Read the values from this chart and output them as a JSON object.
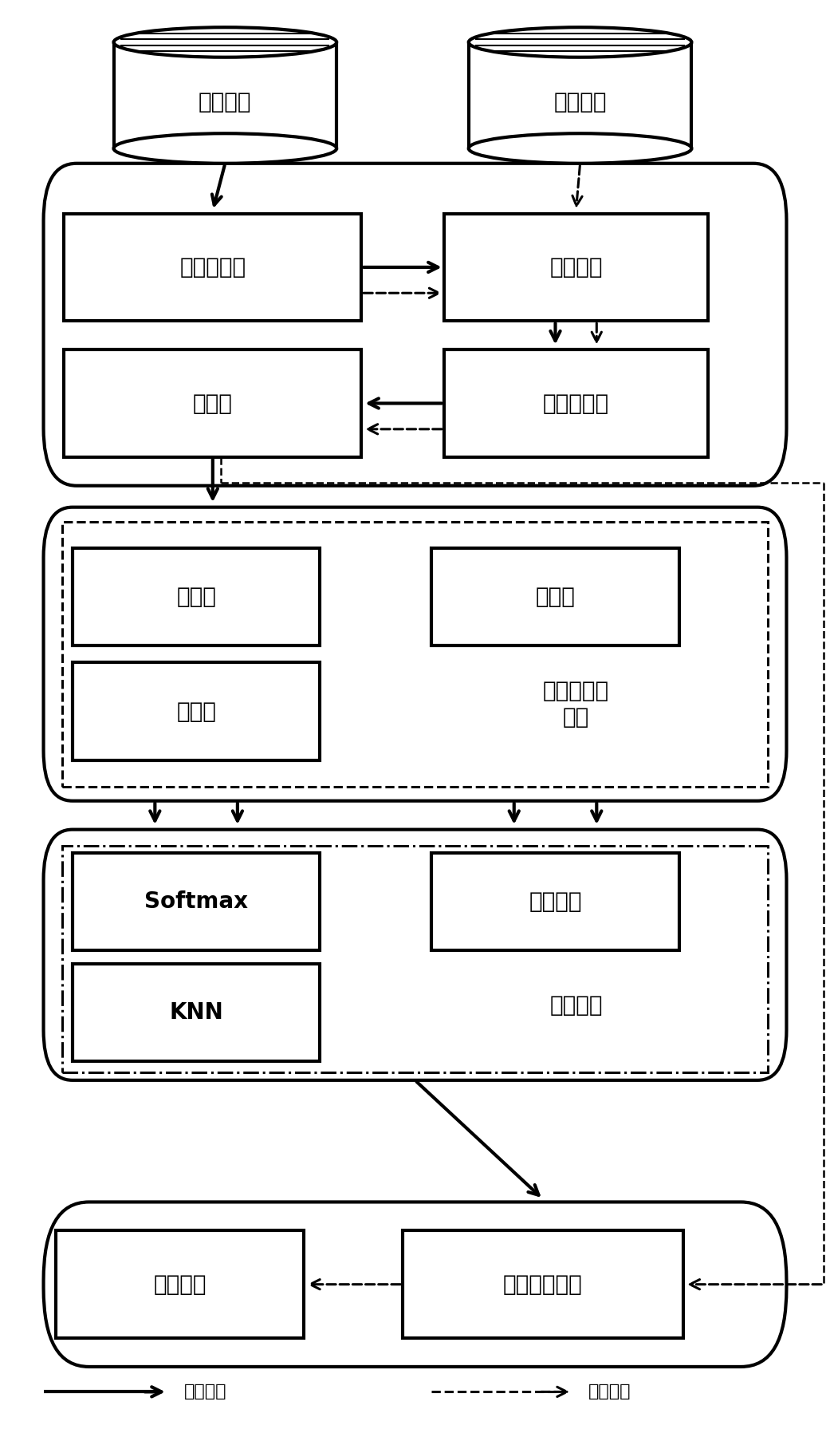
{
  "bg_color": "#ffffff",
  "line_color": "#000000",
  "fig_width": 10.41,
  "fig_height": 18.01,
  "font_size_large": 20,
  "font_size_medium": 16,
  "font_size_small": 14,
  "hist_label": "历史数据",
  "rt_label": "实时数据",
  "pre_label": "数据预处理",
  "feat_label": "特征提取",
  "samp_label": "样本集",
  "norm_label": "数据标准化",
  "train_label": "训练集",
  "valid_label": "验证集",
  "test_label": "测试集",
  "hd_label": "历史数据集\n划分",
  "softmax_label": "Softmax",
  "rf_label": "随机森林",
  "knn_label": "KNN",
  "alg_label": "算法评估",
  "diag_label": "诊断结果",
  "best_label": "最优组合模型",
  "legend_solid": "训练过程",
  "legend_dashed": "实时过程"
}
